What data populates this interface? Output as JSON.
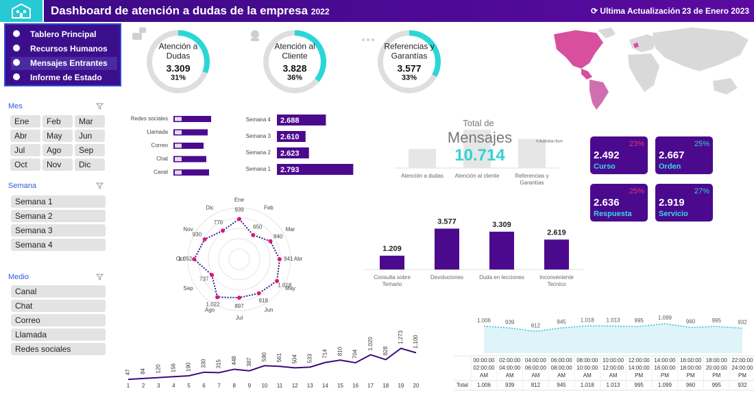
{
  "header": {
    "title": "Dashboard de atención a dudas de la empresa",
    "year": "2022",
    "update_label": "Ultima Actualización",
    "update_date": "23 de Enero 2023"
  },
  "nav": [
    "Tablero Principal",
    "Recursos Humanos",
    "Mensajes Entrantes",
    "Informe de Estado"
  ],
  "filters": [
    {
      "title": "Mes",
      "items": [
        "Ene",
        "Feb",
        "Mar",
        "Abr",
        "May",
        "Jun",
        "Jul",
        "Ago",
        "Sep",
        "Oct",
        "Nov",
        "Dic"
      ]
    },
    {
      "title": "Semana",
      "items": [
        "Semana 1",
        "Semana 2",
        "Semana 3",
        "Semana 4"
      ]
    },
    {
      "title": "Medio",
      "items": [
        "Canal",
        "Chat",
        "Correo",
        "Llamada",
        "Redes sociales"
      ]
    }
  ],
  "chart_data": [
    {
      "type": "gauge",
      "categories": [
        "Atención a Dudas",
        "Atención al Cliente",
        "Referencias y Garantías"
      ],
      "values": [
        3309,
        3828,
        3577
      ],
      "value_labels": [
        "3.309",
        "3.828",
        "3.577"
      ],
      "percents": [
        31,
        36,
        33
      ],
      "percent_labels": [
        "31%",
        "36%",
        "33%"
      ],
      "color": "#2ad6d8"
    },
    {
      "type": "hbar",
      "categories": [
        "Redes sociales",
        "Llamada",
        "Correo",
        "Chat",
        "Canal"
      ],
      "values": [
        2367,
        2151,
        1893,
        2065,
        2238
      ],
      "color": "#4b0a8e"
    },
    {
      "type": "hbar",
      "categories": [
        "Semana 4",
        "Semana 3",
        "Semana 2",
        "Semana 1"
      ],
      "values": [
        2688,
        2610,
        2623,
        2793
      ],
      "value_labels": [
        "2.688",
        "2.610",
        "2.623",
        "2.793"
      ],
      "xlim": [
        2500,
        2800
      ],
      "color": "#4b0a8e"
    },
    {
      "type": "bar",
      "title": "Total de",
      "subtitle": "Mensajes",
      "categories": [
        "Atención a dudas",
        "Atención al cliente",
        "Referencias y Garantías"
      ],
      "values": [
        3309,
        3828,
        3577
      ],
      "ylim": [
        2800,
        3900
      ],
      "total": 10714,
      "total_label": "10.714",
      "attribution": "© Australian Bure",
      "color": "#e6e6e6"
    },
    {
      "type": "kpi",
      "categories": [
        "Curso",
        "Orden",
        "Respuesta",
        "Servicio"
      ],
      "values": [
        2492,
        2667,
        2636,
        2919
      ],
      "value_labels": [
        "2.492",
        "2.667",
        "2.636",
        "2.919"
      ],
      "percents": [
        23,
        25,
        25,
        27
      ],
      "percent_labels": [
        "23%",
        "25%",
        "25%",
        "27%"
      ],
      "percent_colors": [
        "#e8336f",
        "#2fd3d3",
        "#e8336f",
        "#2fd3d3"
      ],
      "color": "#4b0a8e"
    },
    {
      "type": "radar",
      "categories": [
        "Ene",
        "Feb",
        "Mar",
        "Abr",
        "May",
        "Jun",
        "Jul",
        "Ago",
        "Sep",
        "Oct",
        "Nov",
        "Dic"
      ],
      "values": [
        939,
        650,
        840,
        941,
        1018,
        918,
        897,
        1022,
        737,
        1052,
        930,
        770
      ],
      "value_labels": [
        "939",
        "650",
        "840",
        "941",
        "1.018",
        "918",
        "897",
        "1.022",
        "737",
        "1.052",
        "930",
        "770"
      ],
      "rlim": [
        0,
        1200
      ],
      "color": "#2b1d8f",
      "marker_color": "#e0156f"
    },
    {
      "type": "bar",
      "categories": [
        "Consulta sobre Temario",
        "Devoluciones",
        "Duda en lecciones",
        "Inconveniente Tecnico"
      ],
      "values": [
        1209,
        3577,
        3309,
        2619
      ],
      "value_labels": [
        "1.209",
        "3.577",
        "3.309",
        "2.619"
      ],
      "ylim": [
        0,
        3600
      ],
      "color": "#4b0a8e"
    },
    {
      "type": "line",
      "x": [
        1,
        2,
        3,
        4,
        5,
        6,
        7,
        8,
        9,
        10,
        11,
        12,
        13,
        14,
        15,
        16,
        17,
        18,
        19,
        20
      ],
      "values": [
        47,
        84,
        120,
        156,
        190,
        330,
        315,
        448,
        387,
        590,
        561,
        504,
        533,
        714,
        810,
        704,
        1020,
        828,
        1273,
        1100
      ],
      "value_labels": [
        "47",
        "84",
        "120",
        "156",
        "190",
        "330",
        "315",
        "448",
        "387",
        "590",
        "561",
        "504",
        "533",
        "714",
        "810",
        "704",
        "1.020",
        "828",
        "1.273",
        "1.100"
      ],
      "xlim": [
        1,
        20
      ],
      "ylim": [
        0,
        1300
      ],
      "color": "#3a0a7a"
    },
    {
      "type": "area",
      "categories": [
        "00:00:00 02:00:00 AM",
        "02:00:00 04:00:00 AM",
        "04:00:00 06:00:00 AM",
        "06:00:00 08:00:00 AM",
        "08:00:00 10:00:00 AM",
        "10:00:00 12:00:00 AM",
        "12:00:00 14:00:00 PM",
        "14:00:00 16:00:00 PM",
        "16:00:00 18:00:00 PM",
        "18:00:00 20:00:00 PM",
        "22:00:00 24:00:00 PM"
      ],
      "values": [
        1006,
        939,
        812,
        945,
        1018,
        1013,
        995,
        1099,
        960,
        995,
        932
      ],
      "value_labels": [
        "1.006",
        "939",
        "812",
        "945",
        "1.018",
        "1.013",
        "995",
        "1.099",
        "960",
        "995",
        "932"
      ],
      "row_label": "Total",
      "ylim": [
        0,
        1100
      ],
      "color": "#2bbfcf",
      "fill": "#dff4f8"
    }
  ]
}
